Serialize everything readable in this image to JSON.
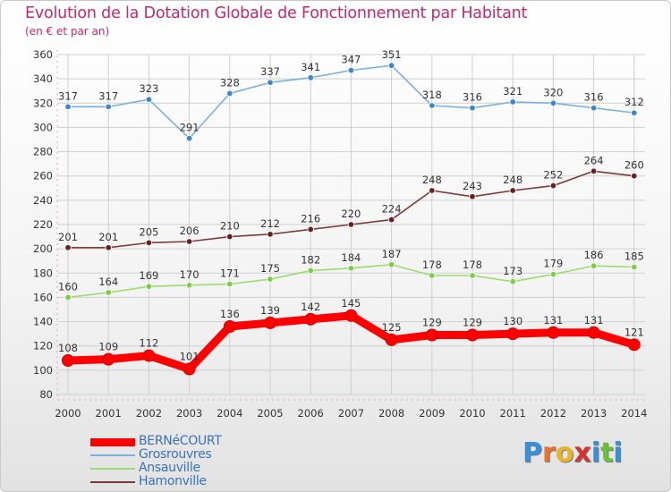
{
  "title": "Evolution de la Dotation Globale de Fonctionnement par Habitant",
  "subtitle": "(en € et par an)",
  "brand": {
    "text": "Proxiti",
    "letters": [
      "P",
      "r",
      "o",
      "x",
      "i",
      "t",
      "i"
    ],
    "letter_colors": [
      "#3b8fd6",
      "#e8732a",
      "#e8b42a",
      "#d6322e",
      "#3b8fd6",
      "#6bbf3a",
      "#3b8fd6"
    ]
  },
  "colors": {
    "title": "#c4286f",
    "grid": "#cfcfcf",
    "axis_text": "#333333",
    "legend_text": "#3a73b8"
  },
  "chart_data": {
    "type": "line",
    "title": "Evolution de la Dotation Globale de Fonctionnement par Habitant",
    "subtitle": "(en € et par an)",
    "xlabel": "",
    "ylabel": "",
    "x": [
      "2000",
      "2001",
      "2002",
      "2003",
      "2004",
      "2005",
      "2006",
      "2007",
      "2008",
      "2009",
      "2010",
      "2011",
      "2012",
      "2013",
      "2014"
    ],
    "ylim": [
      80,
      360
    ],
    "yticks": [
      80,
      100,
      120,
      140,
      160,
      180,
      200,
      220,
      240,
      260,
      280,
      300,
      320,
      340,
      360
    ],
    "grid": true,
    "legend_position": "bottom-left",
    "series": [
      {
        "name": "BERNéCOURT",
        "color": "#ff0000",
        "marker_color": "#ff0000",
        "width": "thick",
        "values": [
          108,
          109,
          112,
          101,
          136,
          139,
          142,
          145,
          125,
          129,
          129,
          130,
          131,
          131,
          121
        ]
      },
      {
        "name": "Grosrouvres",
        "color": "#7fb0dc",
        "marker_color": "#3d86c8",
        "width": "thin",
        "values": [
          317,
          317,
          323,
          291,
          328,
          337,
          341,
          347,
          351,
          318,
          316,
          321,
          320,
          316,
          312
        ]
      },
      {
        "name": "Ansauville",
        "color": "#9bdc6e",
        "marker_color": "#7ccc45",
        "width": "thin",
        "values": [
          160,
          164,
          169,
          170,
          171,
          175,
          182,
          184,
          187,
          178,
          178,
          173,
          179,
          186,
          185
        ]
      },
      {
        "name": "Hamonville",
        "color": "#7a3a3a",
        "marker_color": "#6b2020",
        "width": "thin",
        "values": [
          201,
          201,
          205,
          206,
          210,
          212,
          216,
          220,
          224,
          248,
          243,
          248,
          252,
          264,
          260
        ]
      }
    ]
  }
}
